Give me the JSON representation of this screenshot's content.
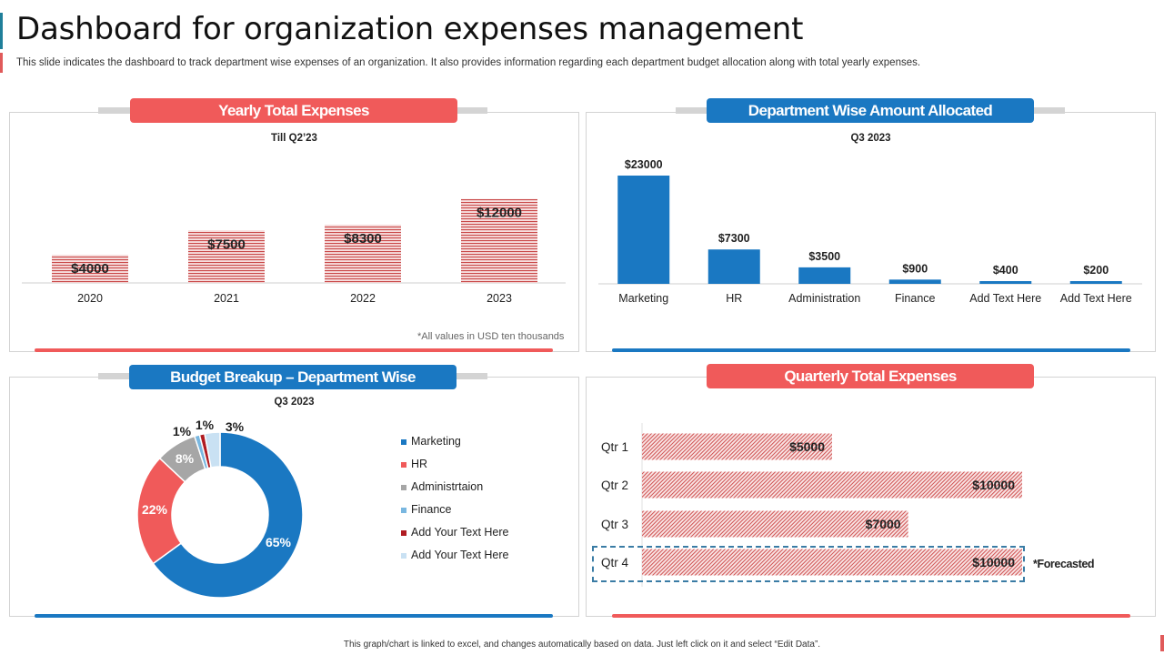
{
  "page": {
    "title": "Dashboard for organization expenses management",
    "subtitle": "This slide indicates the dashboard  to track department  wise expenses of an organization.  It also provides  information  regarding  each department budget allocation along with total yearly expenses.",
    "footer": "This graph/chart is linked to excel, and changes automatically based on data. Just left click on it and select “Edit Data”.",
    "colors": {
      "red": "#f05a5a",
      "blue": "#1a78c2",
      "gray": "#a6a6a6",
      "light_blue": "#79b7e0",
      "dark_red": "#b01c22",
      "pale_blue": "#c9e1f3"
    }
  },
  "panels": {
    "yearly": {
      "header": "Yearly Total Expenses",
      "subtitle": "Till Q2’23",
      "note": "*All values in USD ten thousands"
    },
    "department": {
      "header": "Department Wise Amount Allocated",
      "subtitle": "Q3 2023"
    },
    "budget": {
      "header": "Budget Breakup – Department Wise",
      "subtitle": "Q3 2023"
    },
    "quarterly": {
      "header": "Quarterly Total Expenses",
      "forecast_label": "*Forecasted"
    }
  },
  "chart_data": [
    {
      "id": "yearly",
      "type": "bar",
      "title": "Yearly Total Expenses",
      "subtitle": "Till Q2’23",
      "categories": [
        "2020",
        "2021",
        "2022",
        "2023"
      ],
      "values": [
        4000,
        7500,
        8300,
        12000
      ],
      "labels": [
        "$4000",
        "$7500",
        "$8300",
        "$12000"
      ],
      "ylim": [
        0,
        13000
      ],
      "grid": false
    },
    {
      "id": "department",
      "type": "bar",
      "title": "Department Wise Amount Allocated",
      "subtitle": "Q3 2023",
      "categories": [
        "Marketing",
        "HR",
        "Administration",
        "Finance",
        "Add Text Here",
        "Add Text Here"
      ],
      "values": [
        23000,
        7300,
        3500,
        900,
        400,
        200
      ],
      "labels": [
        "$23000",
        "$7300",
        "$3500",
        "$900",
        "$400",
        "$200"
      ],
      "ylim": [
        0,
        23000
      ],
      "grid": false
    },
    {
      "id": "budget",
      "type": "pie",
      "title": "Budget Breakup – Department Wise",
      "subtitle": "Q3 2023",
      "categories": [
        "Marketing",
        "HR",
        "Administrtaion",
        "Finance",
        "Add Your Text Here",
        "Add Your Text Here"
      ],
      "values": [
        65,
        22,
        8,
        1,
        1,
        3
      ],
      "labels": [
        "65%",
        "22%",
        "8%",
        "1%",
        "1%",
        "3%"
      ],
      "colors": [
        "#1a78c2",
        "#f05a5a",
        "#a6a6a6",
        "#79b7e0",
        "#b01c22",
        "#c9e1f3"
      ],
      "legend": "right"
    },
    {
      "id": "quarterly",
      "type": "bar",
      "orientation": "horizontal",
      "title": "Quarterly Total Expenses",
      "categories": [
        "Qtr 1",
        "Qtr 2",
        "Qtr 3",
        "Qtr 4"
      ],
      "values": [
        5000,
        10000,
        7000,
        10000
      ],
      "labels": [
        "$5000",
        "$10000",
        "$7000",
        "$10000"
      ],
      "forecasted": [
        false,
        false,
        false,
        true
      ],
      "xlim": [
        0,
        10000
      ]
    }
  ]
}
